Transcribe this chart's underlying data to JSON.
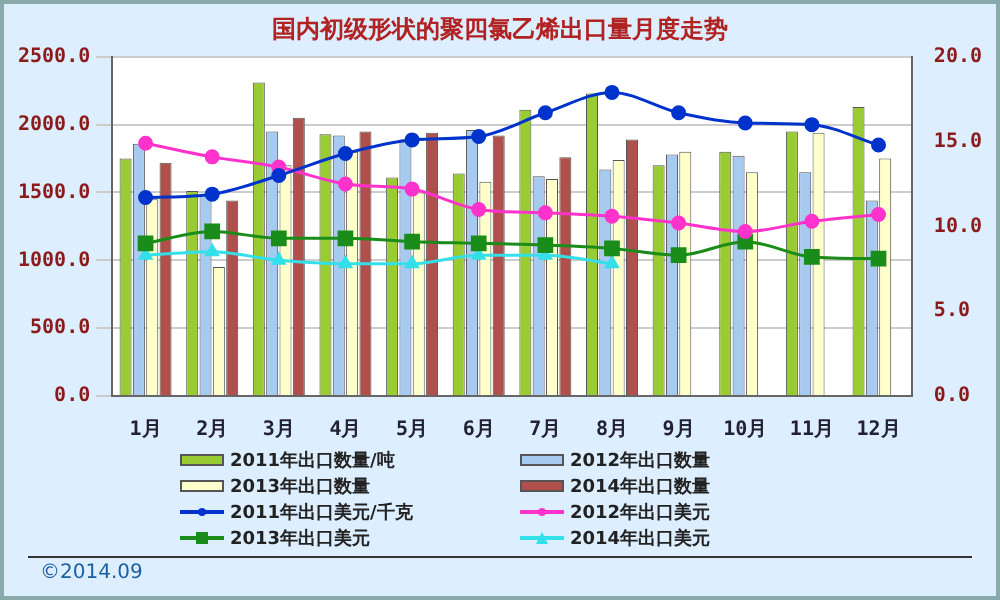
{
  "chart_data": {
    "type": "bar",
    "title": "国内初级形状的聚四氯乙烯出口量月度走势",
    "categories": [
      "1月",
      "2月",
      "3月",
      "4月",
      "5月",
      "6月",
      "7月",
      "8月",
      "9月",
      "10月",
      "11月",
      "12月"
    ],
    "series": [
      {
        "name": "2011年出口数量/吨",
        "color": "#99cc33",
        "values": [
          1750,
          1510,
          2310,
          1930,
          1610,
          1640,
          2110,
          2230,
          1700,
          1800,
          1950,
          2130
        ]
      },
      {
        "name": "2012年出口数量",
        "color": "#a6caf0",
        "values": [
          1860,
          1480,
          1950,
          1920,
          1890,
          1960,
          1620,
          1670,
          1780,
          1770,
          1650,
          1440
        ]
      },
      {
        "name": "2013年出口数量",
        "color": "#ffffcc",
        "values": [
          1450,
          950,
          1700,
          1800,
          1500,
          1580,
          1600,
          1740,
          1800,
          1650,
          1940,
          1750
        ]
      },
      {
        "name": "2014年出口数量",
        "color": "#b0504d",
        "values": [
          1720,
          1440,
          2050,
          1950,
          1940,
          1920,
          1760,
          1890,
          null,
          null,
          null,
          null
        ]
      },
      {
        "name": "2011年出口美元/千克",
        "type": "line",
        "axis": "y2",
        "marker": "circle",
        "color": "#0033cc",
        "values": [
          11.7,
          11.9,
          13.0,
          14.3,
          15.1,
          15.3,
          16.7,
          17.9,
          16.7,
          16.1,
          16.0,
          14.8
        ]
      },
      {
        "name": "2012年出口美元",
        "type": "line",
        "axis": "y2",
        "marker": "circle",
        "color": "#ff33cc",
        "values": [
          14.9,
          14.1,
          13.5,
          12.5,
          12.2,
          11.0,
          10.8,
          10.6,
          10.2,
          9.7,
          10.3,
          10.7
        ]
      },
      {
        "name": "2013年出口美元",
        "type": "line",
        "axis": "y2",
        "marker": "square",
        "color": "#1a8c1a",
        "values": [
          9.0,
          9.7,
          9.3,
          9.3,
          9.1,
          9.0,
          8.9,
          8.7,
          8.3,
          9.1,
          8.2,
          8.1
        ]
      },
      {
        "name": "2014年出口美元",
        "type": "line",
        "axis": "y2",
        "marker": "triangle",
        "color": "#33e0ea",
        "values": [
          8.3,
          8.5,
          8.0,
          7.8,
          7.8,
          8.3,
          8.3,
          7.8,
          null,
          null,
          null,
          null
        ]
      }
    ],
    "ylim": [
      0,
      2500
    ],
    "yticks": [
      {
        "value": 0,
        "label": "0.0"
      },
      {
        "value": 500,
        "label": "500.0"
      },
      {
        "value": 1000,
        "label": "1000.0"
      },
      {
        "value": 1500,
        "label": "1500.0"
      },
      {
        "value": 2000,
        "label": "2000.0"
      },
      {
        "value": 2500,
        "label": "2500.0"
      }
    ],
    "y2lim": [
      0,
      20
    ],
    "y2ticks": [
      {
        "value": 0,
        "label": "0.0"
      },
      {
        "value": 5,
        "label": "5.0"
      },
      {
        "value": 10,
        "label": "10.0"
      },
      {
        "value": 15,
        "label": "15.0"
      },
      {
        "value": 20,
        "label": "20.0"
      }
    ],
    "grid": "y",
    "legend": "bottom",
    "annotations": [
      "©2014.09"
    ]
  }
}
